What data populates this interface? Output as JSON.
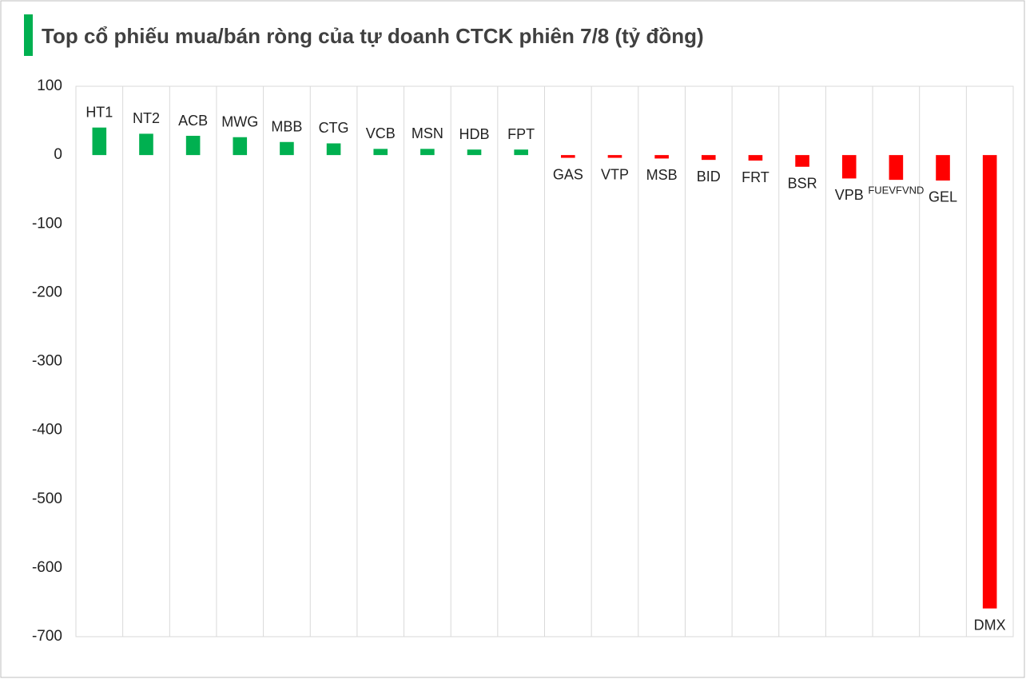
{
  "chart_data": {
    "type": "bar",
    "title": "Top cổ phiếu mua/bán ròng của tự doanh CTCK phiên 7/8 (tỷ đồng)",
    "categories": [
      "HT1",
      "NT2",
      "ACB",
      "MWG",
      "MBB",
      "CTG",
      "VCB",
      "MSN",
      "HDB",
      "FPT",
      "GAS",
      "VTP",
      "MSB",
      "BID",
      "FRT",
      "BSR",
      "VPB",
      "FUEVFVND",
      "GEL",
      "DMX"
    ],
    "values": [
      40,
      31,
      28,
      26,
      19,
      17,
      9,
      9,
      8,
      8,
      -4,
      -4,
      -5,
      -7,
      -8,
      -17,
      -34,
      -36,
      -37,
      -659
    ],
    "positive_color": "#00b050",
    "negative_color": "#ff0000",
    "ylim": [
      -700,
      100
    ],
    "yticks": [
      100,
      0,
      -100,
      -200,
      -300,
      -400,
      -500,
      -600,
      -700
    ]
  }
}
